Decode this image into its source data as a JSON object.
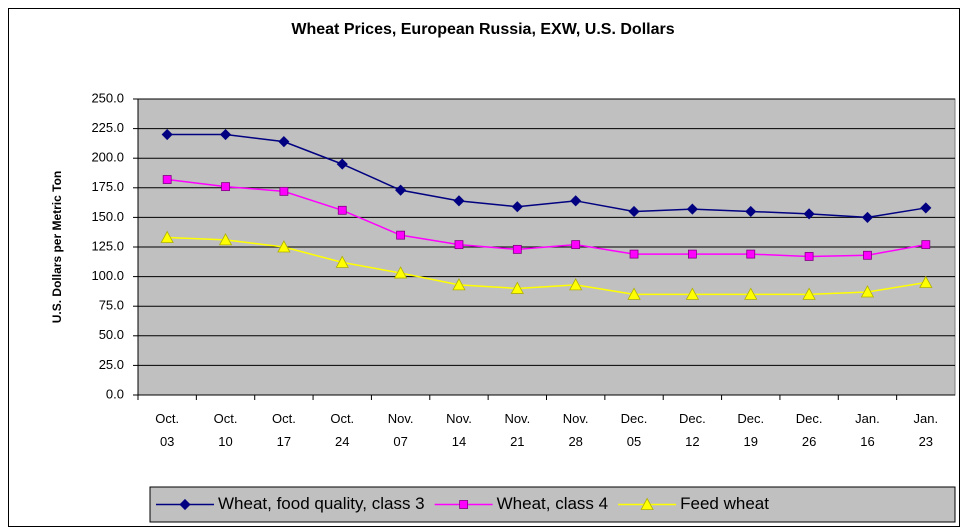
{
  "chart_data": {
    "type": "line",
    "title": "Wheat Prices, European Russia, EXW, U.S. Dollars",
    "y_label": "U.S. Dollars per Metric Ton",
    "categories": [
      "Oct. 03",
      "Oct. 10",
      "Oct. 17",
      "Oct. 24",
      "Nov. 07",
      "Nov. 14",
      "Nov. 21",
      "Nov. 28",
      "Dec. 05",
      "Dec. 12",
      "Dec. 19",
      "Dec. 26",
      "Jan. 16",
      "Jan. 23"
    ],
    "series": [
      {
        "name": "Wheat, food quality, class 3",
        "color": "#000080",
        "marker": "diamond",
        "values": [
          220,
          220,
          214,
          195,
          173,
          164,
          159,
          164,
          155,
          157,
          155,
          153,
          150,
          158
        ]
      },
      {
        "name": "Wheat, class 4",
        "color": "#ff00ff",
        "marker": "square",
        "values": [
          182,
          176,
          172,
          156,
          135,
          127,
          123,
          127,
          119,
          119,
          119,
          117,
          118,
          127
        ]
      },
      {
        "name": "Feed wheat",
        "color": "#ffff00",
        "marker": "triangle",
        "values": [
          133,
          131,
          125,
          112,
          103,
          93,
          90,
          93,
          85,
          85,
          85,
          85,
          87,
          95
        ]
      }
    ],
    "ylim": [
      0,
      250
    ],
    "yticks": [
      {
        "value": 0,
        "label": "0.0"
      },
      {
        "value": 25,
        "label": "25.0"
      },
      {
        "value": 50,
        "label": "50.0"
      },
      {
        "value": 75,
        "label": "75.0"
      },
      {
        "value": 100,
        "label": "100.0"
      },
      {
        "value": 125,
        "label": "125.0"
      },
      {
        "value": 150,
        "label": "150.0"
      },
      {
        "value": 175,
        "label": "175.0"
      },
      {
        "value": 200,
        "label": "200.0"
      },
      {
        "value": 225,
        "label": "225.0"
      },
      {
        "value": 250,
        "label": "250.0"
      }
    ],
    "grid": true,
    "plot_background": "#c0c0c0",
    "legend": "bottom"
  }
}
